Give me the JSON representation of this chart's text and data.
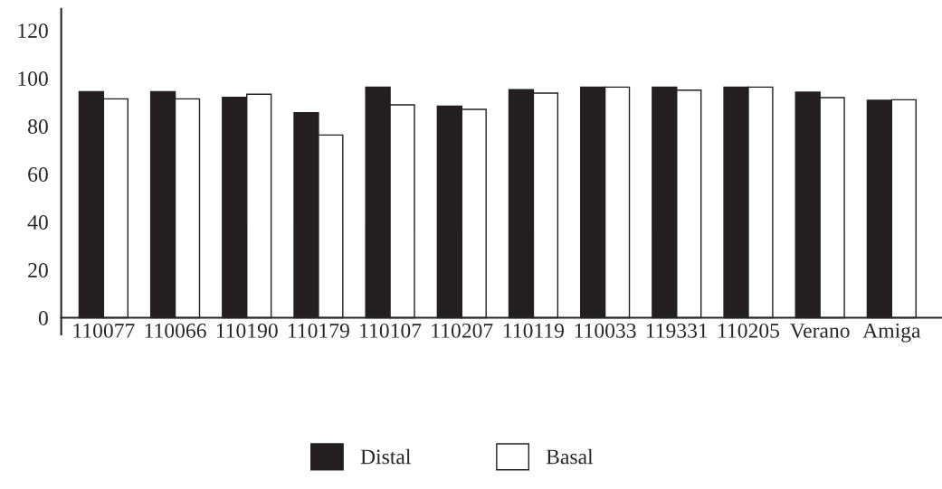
{
  "chart_data": {
    "type": "bar",
    "categories": [
      "110077",
      "110066",
      "110190",
      "110179",
      "110107",
      "110207",
      "110119",
      "110033",
      "119331",
      "110205",
      "Verano",
      "Amiga"
    ],
    "series": [
      {
        "name": "Distal",
        "color": "#231f20",
        "values": [
          94.4,
          94.4,
          92.0,
          85.6,
          96.3,
          88.3,
          95.2,
          96.3,
          96.3,
          96.3,
          94.2,
          90.8
        ]
      },
      {
        "name": "Basal",
        "color": "#ffffff",
        "values": [
          91.4,
          91.4,
          93.3,
          76.3,
          88.9,
          87.0,
          93.8,
          96.3,
          95.0,
          96.3,
          91.9,
          91.0
        ]
      }
    ],
    "ylim": [
      -7,
      129
    ],
    "yticks": [
      0,
      20,
      40,
      60,
      80,
      100,
      120
    ],
    "legend": "bottom"
  }
}
